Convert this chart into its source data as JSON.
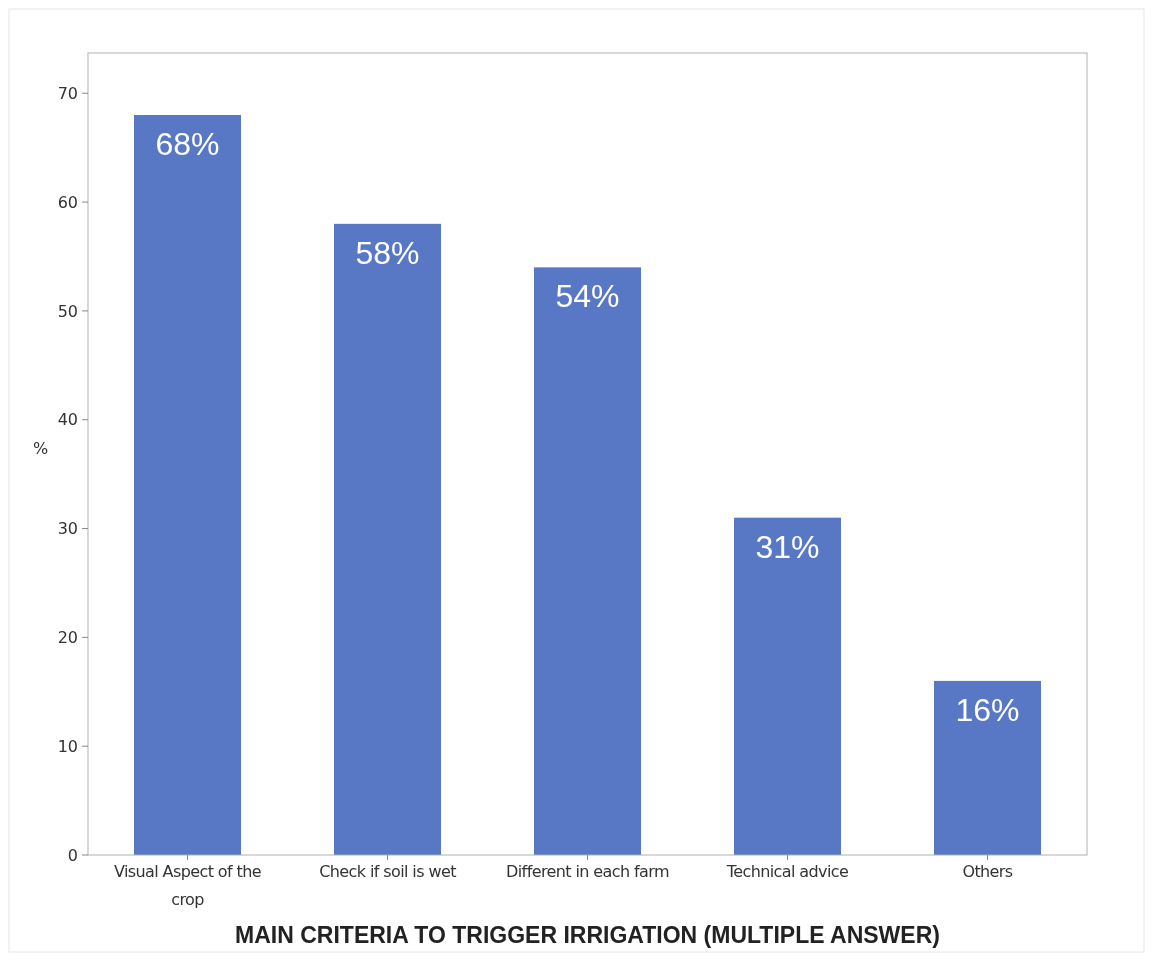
{
  "chart_data": {
    "type": "bar",
    "xlabel": "MAIN CRITERIA TO TRIGGER IRRIGATION (MULTIPLE ANSWER)",
    "ylabel": "%",
    "categories": [
      "Visual Aspect of the crop",
      "Check if soil is wet",
      "Different in each farm",
      "Technical advice",
      "Others"
    ],
    "values": [
      68,
      58,
      54,
      31,
      16
    ],
    "value_labels": [
      "68%",
      "58%",
      "54%",
      "31%",
      "16%"
    ],
    "color": "#5877c5",
    "ylim": [
      0,
      73.7
    ],
    "yticks": [
      0,
      10,
      20,
      30,
      40,
      50,
      60,
      70
    ],
    "grid": false
  }
}
